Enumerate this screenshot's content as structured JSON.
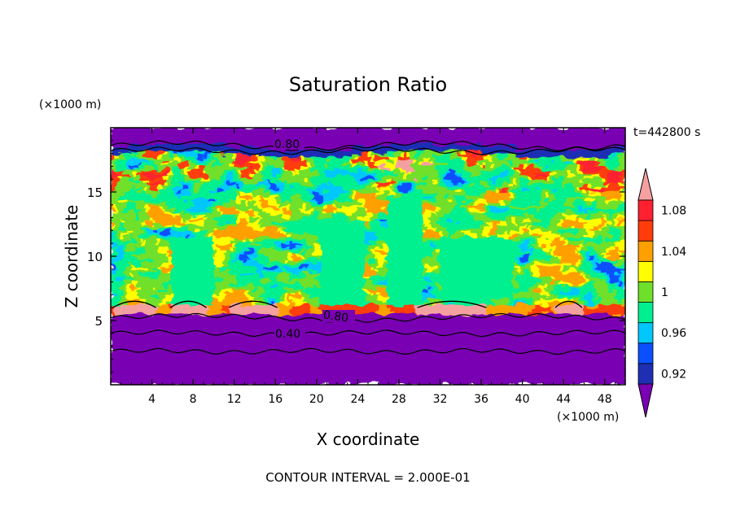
{
  "chart_data": {
    "type": "heatmap",
    "title": "Saturation Ratio",
    "xlabel": "X coordinate",
    "ylabel": "Z coordinate",
    "x_unit": "(×1000 m)",
    "y_unit": "(×1000 m)",
    "time_label": "t=442800 s",
    "footer": "CONTOUR INTERVAL = 2.000E-01",
    "xlim": [
      0,
      50
    ],
    "ylim": [
      0,
      20
    ],
    "x_ticks": [
      "4",
      "8",
      "12",
      "16",
      "20",
      "24",
      "28",
      "32",
      "36",
      "40",
      "44",
      "48"
    ],
    "y_ticks": [
      "5",
      "10",
      "15"
    ],
    "contour_labels": [
      "0.80",
      "0.80",
      "0.40"
    ],
    "colorbar": {
      "labels": [
        "0.92",
        "0.96",
        "1",
        "1.04",
        "1.08"
      ],
      "levels": [
        0.92,
        0.94,
        0.96,
        0.98,
        1.0,
        1.02,
        1.04,
        1.06,
        1.08,
        1.1
      ],
      "colors": [
        "#7a00b4",
        "#1e2fb4",
        "#0a50ff",
        "#00c8ff",
        "#00f090",
        "#6fe02a",
        "#ffff00",
        "#ffa000",
        "#ff3c0a",
        "#ff2030",
        "#f5a0a0"
      ]
    }
  }
}
